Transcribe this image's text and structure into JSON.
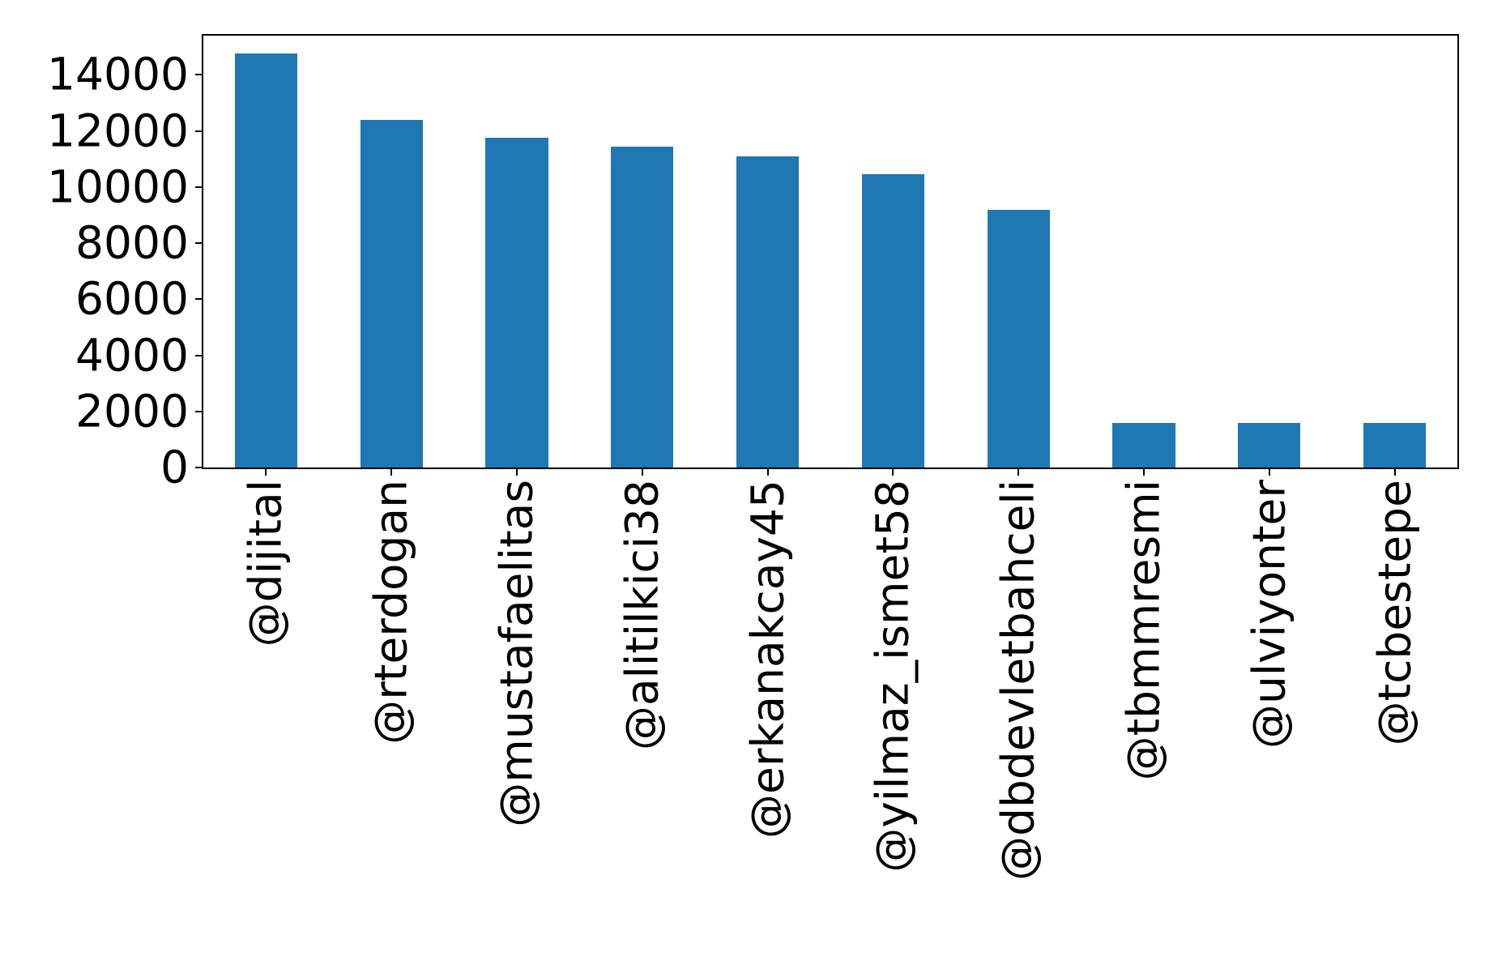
{
  "chart_data": {
    "type": "bar",
    "categories": [
      "@dijital",
      "@rterdogan",
      "@mustafaelitas",
      "@alitilkici38",
      "@erkanakcay45",
      "@yilmaz_ismet58",
      "@dbdevletbahceli",
      "@tbmmresmi",
      "@ulviyonter",
      "@tcbestepe"
    ],
    "values": [
      14750,
      12400,
      11750,
      11450,
      11100,
      10450,
      9200,
      1600,
      1600,
      1600
    ],
    "title": "",
    "xlabel": "",
    "ylabel": "",
    "ylim": [
      0,
      15400
    ],
    "yticks": [
      0,
      2000,
      4000,
      6000,
      8000,
      10000,
      12000,
      14000
    ],
    "bar_color": "#1f77b4",
    "axis_color": "#000000",
    "bar_width_fraction": 0.5,
    "x_tick_label_rotation_deg": 90,
    "grid": false,
    "legend": null
  }
}
